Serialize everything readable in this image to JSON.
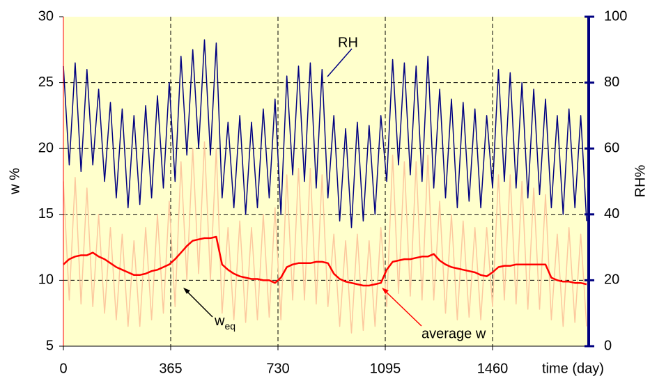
{
  "chart_data": {
    "type": "line",
    "x": [
      0,
      20,
      40,
      60,
      80,
      100,
      120,
      140,
      160,
      180,
      200,
      220,
      240,
      260,
      280,
      300,
      320,
      340,
      360,
      380,
      400,
      420,
      440,
      460,
      480,
      500,
      520,
      540,
      560,
      580,
      600,
      620,
      640,
      660,
      680,
      700,
      720,
      740,
      760,
      780,
      800,
      820,
      840,
      860,
      880,
      900,
      920,
      940,
      960,
      980,
      1000,
      1020,
      1040,
      1060,
      1080,
      1100,
      1120,
      1140,
      1160,
      1180,
      1200,
      1220,
      1240,
      1260,
      1280,
      1300,
      1320,
      1340,
      1360,
      1380,
      1400,
      1420,
      1440,
      1460,
      1480,
      1500,
      1520,
      1540,
      1560,
      1580,
      1600,
      1620,
      1640,
      1660,
      1680,
      1700,
      1720,
      1740,
      1760,
      1780
    ],
    "series": [
      {
        "name": "w",
        "name_sub": "eq",
        "color": "#fcc89e",
        "axis": "y",
        "values": [
          17.5,
          8.5,
          17.8,
          8.2,
          17,
          8,
          15,
          7.5,
          14,
          7,
          13.5,
          6.5,
          13,
          6.5,
          14,
          7,
          15,
          7.5,
          16,
          8,
          19,
          10,
          20,
          10.5,
          20.5,
          10,
          20,
          7.5,
          14,
          7,
          14.5,
          6.8,
          14,
          7,
          15,
          7.2,
          15.5,
          7,
          18,
          8.5,
          18.5,
          8.5,
          18.5,
          8.2,
          18,
          8,
          13.5,
          6.5,
          13,
          6,
          13.5,
          6.2,
          13,
          6.5,
          14,
          8,
          19.5,
          9,
          19,
          8.8,
          19,
          8.5,
          19.5,
          8.5,
          16,
          7.5,
          15,
          7,
          14.5,
          7.2,
          14,
          7,
          14,
          8,
          18,
          8.5,
          18,
          8.2,
          17.5,
          7.8,
          17,
          7.8,
          16.5,
          7,
          13.5,
          6.5,
          14,
          6.8,
          13.5,
          6.5
        ]
      },
      {
        "name": "RH",
        "color": "#000080",
        "axis": "y2",
        "values": [
          85,
          55,
          86,
          53,
          84,
          55,
          78,
          50,
          74,
          45,
          72,
          42,
          70,
          43,
          73,
          45,
          76,
          48,
          80,
          50,
          88,
          58,
          90,
          60,
          93,
          58,
          92,
          45,
          68,
          42,
          70,
          40,
          68,
          42,
          72,
          45,
          75,
          40,
          82,
          52,
          85,
          50,
          86,
          48,
          84,
          45,
          70,
          38,
          66,
          36,
          68,
          38,
          67,
          40,
          70,
          50,
          87,
          55,
          86,
          52,
          85,
          50,
          88,
          48,
          78,
          45,
          75,
          42,
          74,
          44,
          72,
          42,
          70,
          48,
          84,
          50,
          83,
          48,
          80,
          45,
          78,
          46,
          75,
          42,
          70,
          40,
          72,
          42,
          70,
          38
        ]
      },
      {
        "name": "average w",
        "color": "#ff0000",
        "axis": "y",
        "values": [
          11.2,
          11.6,
          11.8,
          11.9,
          11.9,
          12.1,
          11.8,
          11.6,
          11.3,
          11.0,
          10.8,
          10.6,
          10.4,
          10.4,
          10.5,
          10.7,
          10.8,
          11.0,
          11.2,
          11.6,
          12.1,
          12.6,
          13.0,
          13.1,
          13.2,
          13.2,
          13.3,
          11.2,
          10.8,
          10.5,
          10.3,
          10.2,
          10.1,
          10.1,
          10.0,
          10.0,
          9.8,
          10.2,
          11.0,
          11.2,
          11.3,
          11.3,
          11.3,
          11.4,
          11.4,
          11.3,
          10.5,
          10.1,
          9.9,
          9.8,
          9.7,
          9.6,
          9.6,
          9.7,
          9.8,
          10.8,
          11.4,
          11.5,
          11.6,
          11.6,
          11.7,
          11.8,
          11.8,
          12.0,
          11.5,
          11.2,
          11.0,
          10.9,
          10.8,
          10.7,
          10.6,
          10.4,
          10.3,
          10.6,
          11.0,
          11.1,
          11.1,
          11.2,
          11.2,
          11.2,
          11.2,
          11.2,
          11.2,
          10.2,
          10.0,
          9.9,
          9.9,
          9.8,
          9.8,
          9.7
        ]
      }
    ],
    "xlim": [
      0,
      1787
    ],
    "xticks": [
      0,
      365,
      730,
      1095,
      1460
    ],
    "ylim": [
      5,
      30
    ],
    "yticks": [
      5,
      10,
      15,
      20,
      25,
      30
    ],
    "y2lim": [
      0,
      100
    ],
    "y2ticks": [
      0,
      20,
      40,
      60,
      80,
      100
    ],
    "y_label": "w %",
    "y2_label": "RH%",
    "x_label": "time (day)",
    "grid": true,
    "background": "#ffffcc"
  }
}
